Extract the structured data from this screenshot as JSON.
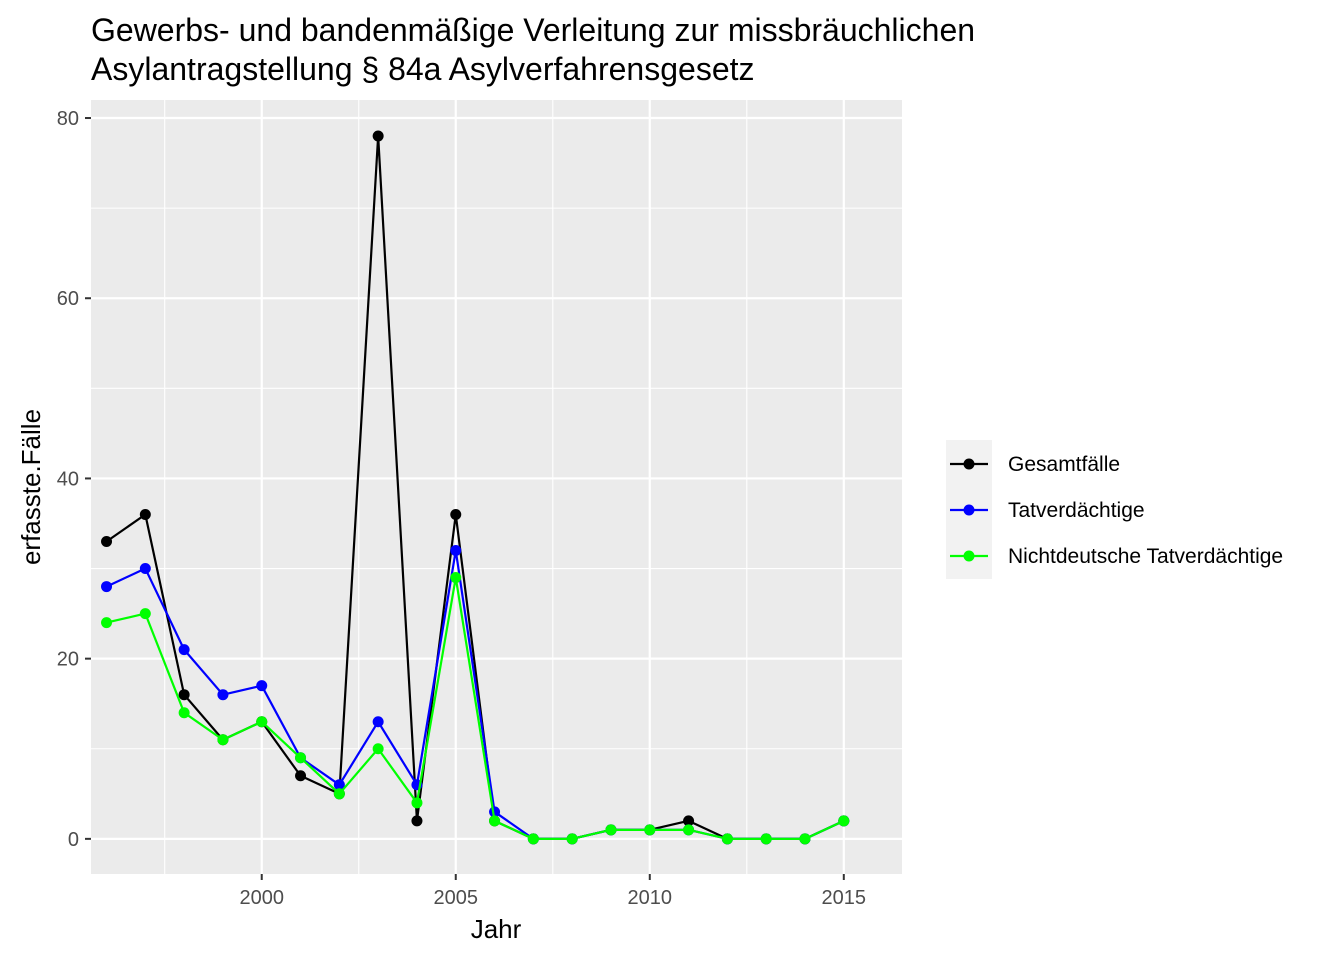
{
  "chart_data": {
    "type": "line",
    "title": "Gewerbs- und bandenmäßige Verleitung zur missbräuchlichen\nAsylantragstellung § 84a Asylverfahrensgesetz",
    "title_lines": [
      "Gewerbs- und bandenmäßige Verleitung zur missbräuchlichen",
      "Asylantragstellung § 84a Asylverfahrensgesetz"
    ],
    "xlabel": "Jahr",
    "ylabel": "erfasste.Fälle",
    "xlim": [
      1995.6,
      2016.5
    ],
    "ylim": [
      -3.9,
      82.0
    ],
    "x_ticks": [
      2000,
      2005,
      2010,
      2015
    ],
    "y_ticks": [
      0,
      20,
      40,
      60,
      80
    ],
    "x_minor": [
      1997.5,
      2002.5,
      2007.5,
      2012.5
    ],
    "y_minor": [
      10,
      30,
      50,
      70
    ],
    "grid": true,
    "panel_background": "#ebebeb",
    "legend_position": "right",
    "x": [
      1996,
      1997,
      1998,
      1999,
      2000,
      2001,
      2002,
      2003,
      2004,
      2005,
      2006,
      2007,
      2008,
      2009,
      2010,
      2011,
      2012,
      2013,
      2014,
      2015
    ],
    "series": [
      {
        "name": "Gesamtfälle",
        "color": "#000000",
        "values": [
          33,
          36,
          16,
          11,
          13,
          7,
          5,
          78,
          2,
          36,
          2,
          0,
          0,
          1,
          1,
          2,
          0,
          0,
          0,
          2
        ]
      },
      {
        "name": "Tatverdächtige",
        "color": "#0000ff",
        "values": [
          28,
          30,
          21,
          16,
          17,
          9,
          6,
          13,
          6,
          32,
          3,
          0,
          0,
          1,
          1,
          1,
          0,
          0,
          0,
          2
        ]
      },
      {
        "name": "Nichtdeutsche Tatverdächtige",
        "color": "#00ff00",
        "values": [
          24,
          25,
          14,
          11,
          13,
          9,
          5,
          10,
          4,
          29,
          2,
          0,
          0,
          1,
          1,
          1,
          0,
          0,
          0,
          2
        ]
      }
    ]
  }
}
